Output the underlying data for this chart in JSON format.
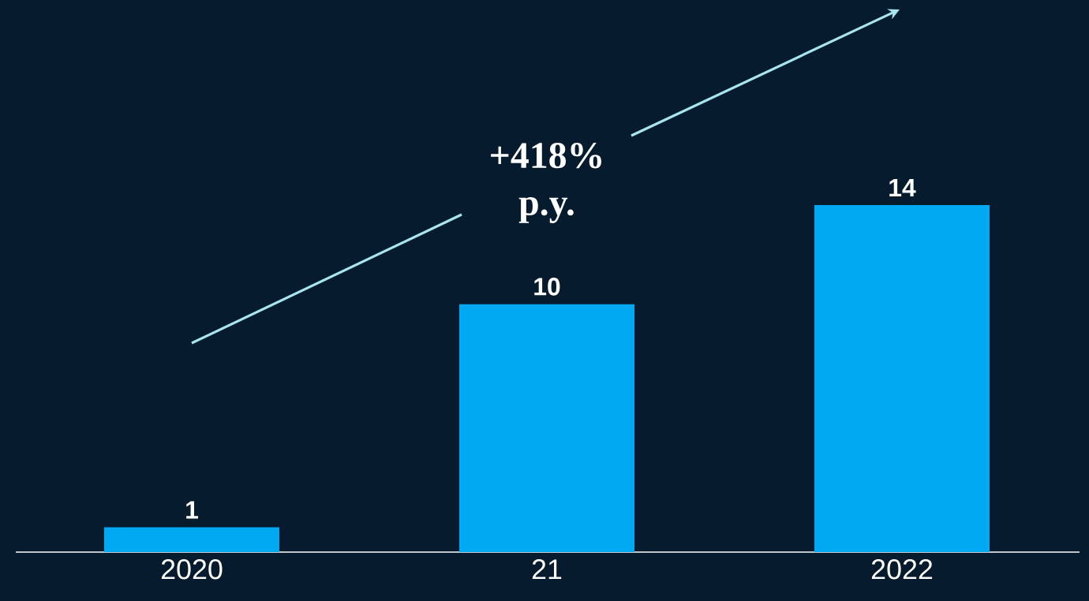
{
  "chart_data": {
    "type": "bar",
    "categories": [
      "2020",
      "21",
      "2022"
    ],
    "values": [
      1,
      10,
      14
    ],
    "color": "#00a9f1",
    "data_labels": true,
    "annotations": [
      "+418%",
      "p.y."
    ]
  }
}
